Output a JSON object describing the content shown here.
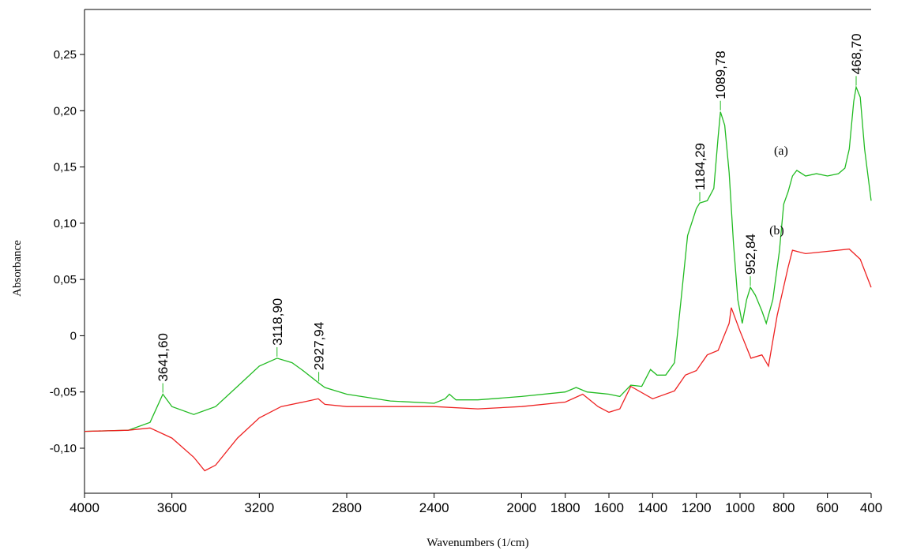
{
  "chart_data": {
    "type": "line",
    "xlabel": "Wavenumbers (1/cm)",
    "ylabel": "Absorbance",
    "xlim": [
      4000,
      400
    ],
    "ylim": [
      -0.14,
      0.29
    ],
    "xticks": [
      4000,
      3600,
      3200,
      2800,
      2400,
      2000,
      1800,
      1600,
      1400,
      1200,
      1000,
      800,
      600,
      400
    ],
    "yticks": [
      {
        "value": 0.25,
        "label": "0,25"
      },
      {
        "value": 0.2,
        "label": "0,20"
      },
      {
        "value": 0.15,
        "label": "0,15"
      },
      {
        "value": 0.1,
        "label": "0,10"
      },
      {
        "value": 0.05,
        "label": "0,05"
      },
      0,
      {
        "value": -0.05,
        "label": "-0,05"
      },
      {
        "value": -0.1,
        "label": "-0,10"
      }
    ],
    "series": [
      {
        "name": "(a)",
        "color": "#22bb22",
        "x": [
          4000,
          3800,
          3700,
          3641.6,
          3600,
          3500,
          3400,
          3300,
          3200,
          3118.9,
          3050,
          3000,
          2927.9,
          2900,
          2800,
          2600,
          2400,
          2350,
          2330,
          2300,
          2200,
          2000,
          1800,
          1750,
          1700,
          1600,
          1550,
          1500,
          1450,
          1410,
          1380,
          1340,
          1300,
          1270,
          1240,
          1200,
          1184.3,
          1150,
          1120,
          1100,
          1089.8,
          1070,
          1050,
          1030,
          1010,
          990,
          970,
          952.8,
          930,
          900,
          880,
          850,
          820,
          800,
          780,
          760,
          740,
          700,
          650,
          600,
          550,
          520,
          500,
          480,
          468.7,
          450,
          430,
          400
        ],
        "values": [
          -0.085,
          -0.084,
          -0.077,
          -0.052,
          -0.063,
          -0.07,
          -0.063,
          -0.045,
          -0.027,
          -0.02,
          -0.024,
          -0.031,
          -0.042,
          -0.046,
          -0.052,
          -0.058,
          -0.06,
          -0.056,
          -0.052,
          -0.057,
          -0.057,
          -0.054,
          -0.05,
          -0.046,
          -0.05,
          -0.052,
          -0.054,
          -0.044,
          -0.045,
          -0.03,
          -0.035,
          -0.035,
          -0.024,
          0.032,
          0.089,
          0.113,
          0.118,
          0.12,
          0.131,
          0.177,
          0.199,
          0.187,
          0.145,
          0.082,
          0.032,
          0.011,
          0.032,
          0.043,
          0.036,
          0.022,
          0.011,
          0.032,
          0.075,
          0.117,
          0.128,
          0.142,
          0.147,
          0.142,
          0.144,
          0.142,
          0.144,
          0.149,
          0.166,
          0.208,
          0.221,
          0.212,
          0.166,
          0.12
        ]
      },
      {
        "name": "(b)",
        "color": "#ee2222",
        "x": [
          4000,
          3800,
          3700,
          3600,
          3500,
          3450,
          3400,
          3300,
          3200,
          3100,
          3000,
          2930,
          2900,
          2800,
          2400,
          2200,
          2000,
          1800,
          1720,
          1650,
          1600,
          1550,
          1500,
          1400,
          1300,
          1250,
          1200,
          1150,
          1100,
          1050,
          1040,
          1000,
          950,
          900,
          870,
          830,
          780,
          760,
          700,
          600,
          500,
          450,
          400
        ],
        "values": [
          -0.085,
          -0.084,
          -0.082,
          -0.091,
          -0.108,
          -0.12,
          -0.115,
          -0.091,
          -0.073,
          -0.063,
          -0.059,
          -0.056,
          -0.061,
          -0.063,
          -0.063,
          -0.065,
          -0.063,
          -0.059,
          -0.052,
          -0.063,
          -0.068,
          -0.065,
          -0.045,
          -0.056,
          -0.049,
          -0.035,
          -0.031,
          -0.017,
          -0.013,
          0.011,
          0.025,
          0.004,
          -0.02,
          -0.017,
          -0.027,
          0.018,
          0.061,
          0.076,
          0.073,
          0.075,
          0.077,
          0.068,
          0.043
        ]
      }
    ],
    "annotations": [
      {
        "x": 3641.6,
        "y": -0.052,
        "label": "3641,60"
      },
      {
        "x": 3118.9,
        "y": -0.02,
        "label": "3118,90"
      },
      {
        "x": 2927.94,
        "y": -0.042,
        "label": "2927,94"
      },
      {
        "x": 1184.29,
        "y": 0.118,
        "label": "1184,29"
      },
      {
        "x": 1089.78,
        "y": 0.199,
        "label": "1089,78"
      },
      {
        "x": 952.84,
        "y": 0.043,
        "label": "952,84"
      },
      {
        "x": 468.7,
        "y": 0.221,
        "label": "468,70"
      }
    ]
  }
}
